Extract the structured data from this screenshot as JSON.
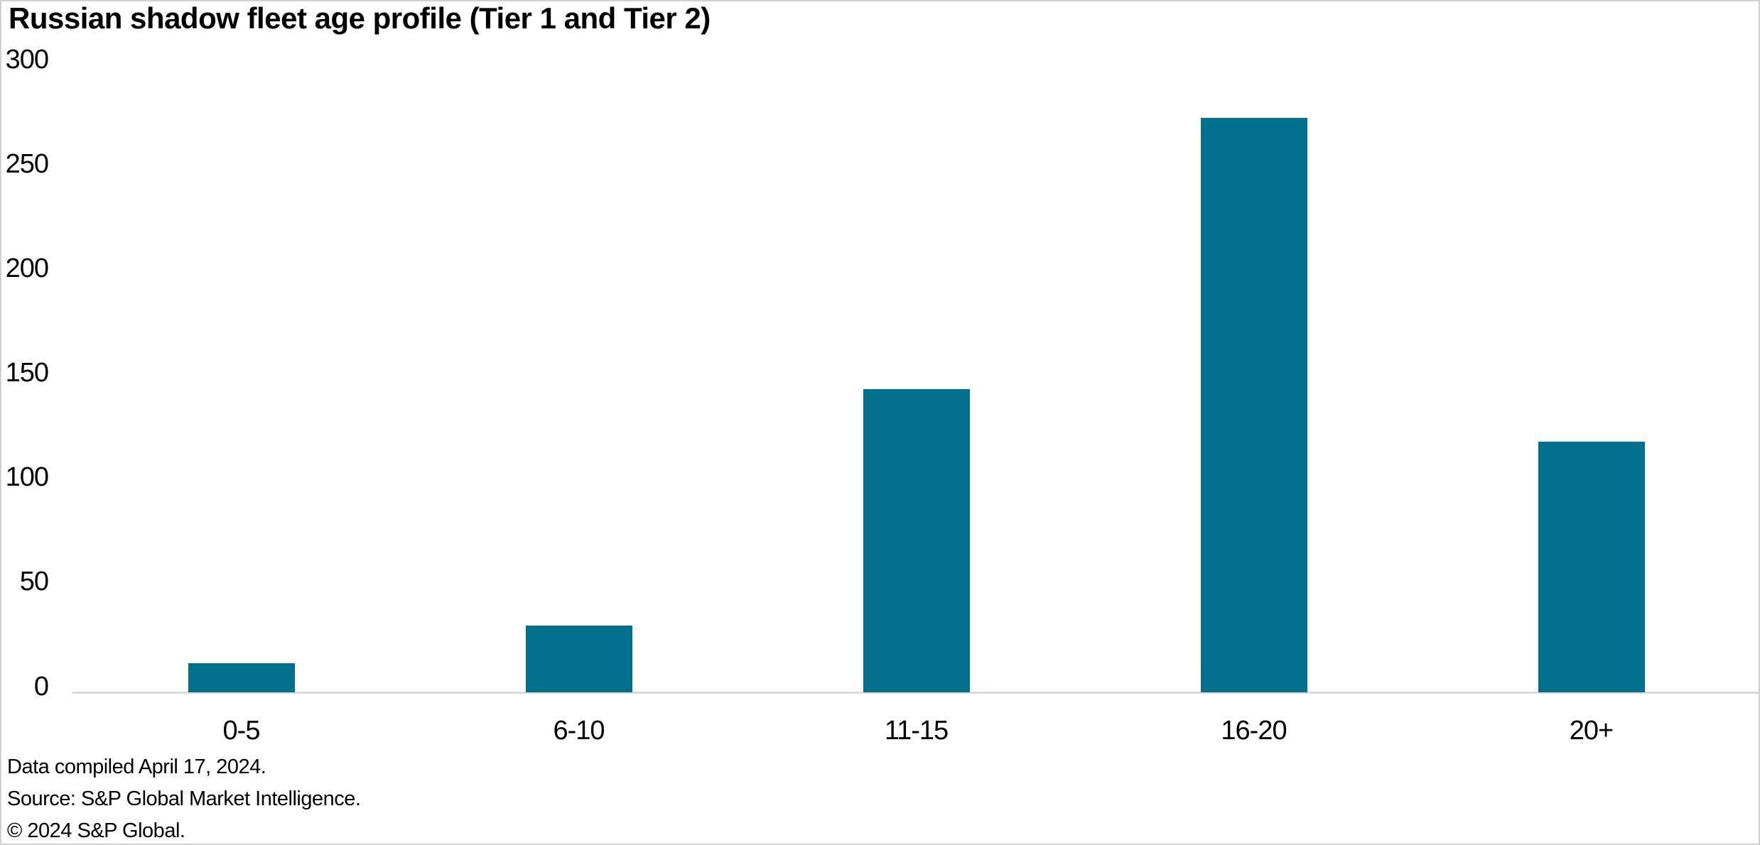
{
  "title": "Russian shadow fleet age profile (Tier 1 and Tier 2)",
  "chart_data": {
    "type": "bar",
    "categories": [
      "0-5",
      "6-10",
      "11-15",
      "16-20",
      "20+"
    ],
    "values": [
      14,
      32,
      145,
      275,
      120
    ],
    "title": "Russian shadow fleet age profile (Tier 1 and Tier 2)",
    "xlabel": "",
    "ylabel": "",
    "ylim": [
      0,
      300
    ],
    "yticks": [
      0,
      50,
      100,
      150,
      200,
      250,
      300
    ],
    "grid": false,
    "legend": false,
    "bar_color": "#02708c"
  },
  "footer": {
    "compiled": "Data compiled April 17, 2024.",
    "source": "Source: S&P Global Market Intelligence.",
    "copyright": "© 2024 S&P Global."
  },
  "colors": {
    "bar": "#02708c",
    "axis_line": "#d9d9d9",
    "text": "#000000",
    "background": "#ffffff"
  }
}
